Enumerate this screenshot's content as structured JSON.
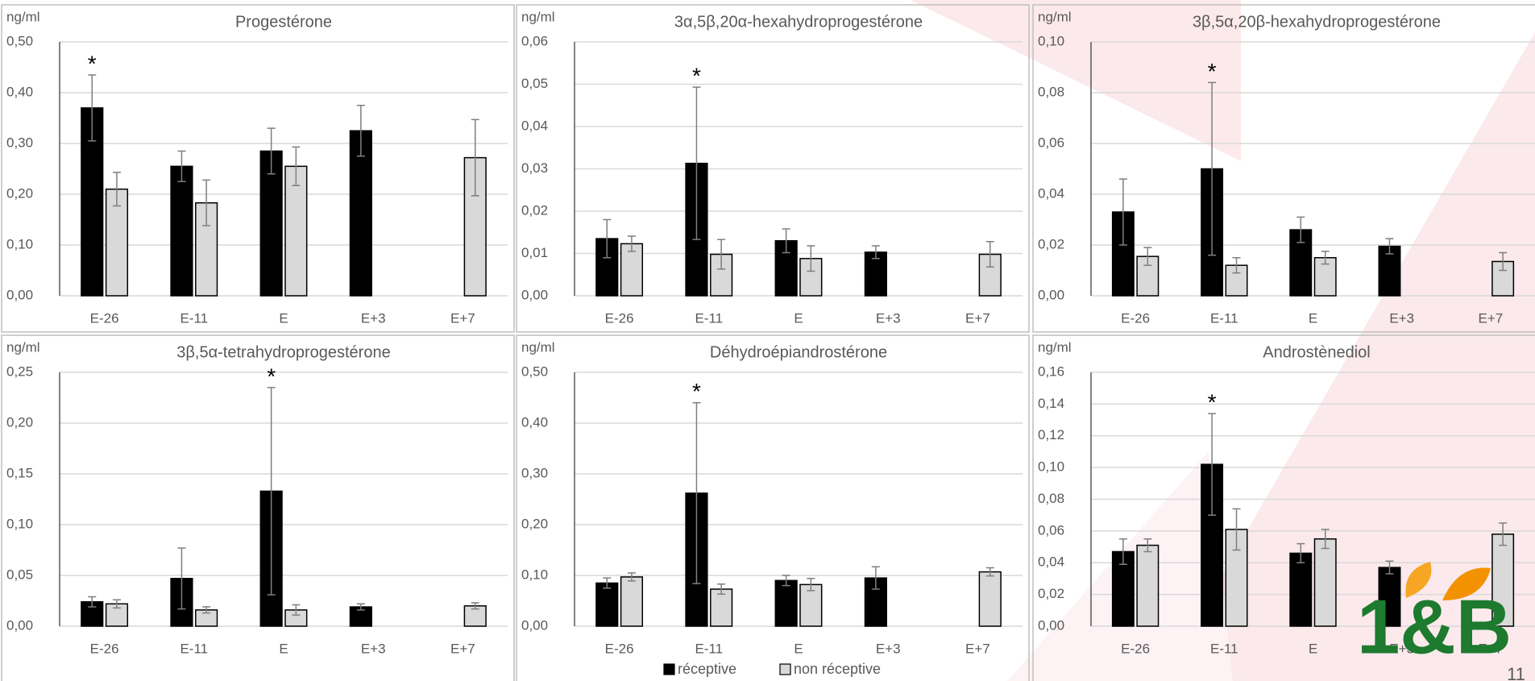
{
  "chart_data": [
    {
      "type": "bar",
      "title": "Progestérone",
      "ylabel": "ng/ml",
      "categories": [
        "E-26",
        "E-11",
        "E",
        "E+3",
        "E+7"
      ],
      "series": [
        {
          "values": [
            0.37,
            0.255,
            0.285,
            0.325,
            null
          ],
          "errors": [
            0.065,
            0.03,
            0.045,
            0.05,
            null
          ]
        },
        {
          "values": [
            0.21,
            0.183,
            0.255,
            null,
            0.272
          ],
          "errors": [
            0.033,
            0.045,
            0.038,
            null,
            0.075
          ]
        }
      ],
      "annotations": [
        {
          "text": "*",
          "x": "E-26"
        }
      ],
      "ylim": [
        0,
        0.5
      ],
      "yticks": [
        {
          "value": 0,
          "label": "0,00"
        },
        {
          "value": 0.1,
          "label": "0,10"
        },
        {
          "value": 0.2,
          "label": "0,20"
        },
        {
          "value": 0.3,
          "label": "0,30"
        },
        {
          "value": 0.4,
          "label": "0,40"
        },
        {
          "value": 0.5,
          "label": "0,50"
        }
      ],
      "grid": true
    },
    {
      "type": "bar",
      "title": "3α,5β,20α-hexahydroprogestérone",
      "ylabel": "ng/ml",
      "categories": [
        "E-26",
        "E-11",
        "E",
        "E+3",
        "E+7"
      ],
      "series": [
        {
          "values": [
            0.0135,
            0.0313,
            0.013,
            0.0103,
            null
          ],
          "errors": [
            0.0045,
            0.018,
            0.0028,
            0.0015,
            null
          ]
        },
        {
          "values": [
            0.0123,
            0.0098,
            0.0088,
            null,
            0.0098
          ],
          "errors": [
            0.0018,
            0.0035,
            0.003,
            null,
            0.003
          ]
        }
      ],
      "annotations": [
        {
          "text": "*",
          "x": "E-11"
        }
      ],
      "ylim": [
        0,
        0.06
      ],
      "yticks": [
        {
          "value": 0,
          "label": "0,00"
        },
        {
          "value": 0.01,
          "label": "0,01"
        },
        {
          "value": 0.02,
          "label": "0,02"
        },
        {
          "value": 0.03,
          "label": "0,03"
        },
        {
          "value": 0.04,
          "label": "0,04"
        },
        {
          "value": 0.05,
          "label": "0,05"
        },
        {
          "value": 0.06,
          "label": "0,06"
        }
      ],
      "grid": true
    },
    {
      "type": "bar",
      "title": "3β,5α,20β-hexahydroprogestérone",
      "ylabel": "ng/ml",
      "categories": [
        "E-26",
        "E-11",
        "E",
        "E+3",
        "E+7"
      ],
      "series": [
        {
          "values": [
            0.033,
            0.05,
            0.026,
            0.0195,
            null
          ],
          "errors": [
            0.013,
            0.034,
            0.005,
            0.003,
            null
          ]
        },
        {
          "values": [
            0.0155,
            0.012,
            0.015,
            null,
            0.0135
          ],
          "errors": [
            0.0035,
            0.003,
            0.0025,
            null,
            0.0035
          ]
        }
      ],
      "annotations": [
        {
          "text": "*",
          "x": "E-11"
        }
      ],
      "ylim": [
        0,
        0.1
      ],
      "yticks": [
        {
          "value": 0,
          "label": "0,00"
        },
        {
          "value": 0.02,
          "label": "0,02"
        },
        {
          "value": 0.04,
          "label": "0,04"
        },
        {
          "value": 0.06,
          "label": "0,06"
        },
        {
          "value": 0.08,
          "label": "0,08"
        },
        {
          "value": 0.1,
          "label": "0,10"
        }
      ],
      "grid": true
    },
    {
      "type": "bar",
      "title": "3β,5α-tetrahydroprogestérone",
      "ylabel": "ng/ml",
      "categories": [
        "E-26",
        "E-11",
        "E",
        "E+3",
        "E+7"
      ],
      "series": [
        {
          "values": [
            0.024,
            0.047,
            0.133,
            0.019,
            null
          ],
          "errors": [
            0.005,
            0.03,
            0.102,
            0.003,
            null
          ]
        },
        {
          "values": [
            0.022,
            0.016,
            0.016,
            null,
            0.02
          ],
          "errors": [
            0.004,
            0.003,
            0.005,
            null,
            0.003
          ]
        }
      ],
      "annotations": [
        {
          "text": "*",
          "x": "E"
        }
      ],
      "ylim": [
        0,
        0.25
      ],
      "yticks": [
        {
          "value": 0,
          "label": "0,00"
        },
        {
          "value": 0.05,
          "label": "0,05"
        },
        {
          "value": 0.1,
          "label": "0,10"
        },
        {
          "value": 0.15,
          "label": "0,15"
        },
        {
          "value": 0.2,
          "label": "0,20"
        },
        {
          "value": 0.25,
          "label": "0,25"
        }
      ],
      "grid": true
    },
    {
      "type": "bar",
      "title": "Déhydroépiandrostérone",
      "ylabel": "ng/ml",
      "categories": [
        "E-26",
        "E-11",
        "E",
        "E+3",
        "E+7"
      ],
      "series": [
        {
          "values": [
            0.085,
            0.262,
            0.09,
            0.095,
            null
          ],
          "errors": [
            0.01,
            0.178,
            0.01,
            0.022,
            null
          ]
        },
        {
          "values": [
            0.097,
            0.073,
            0.082,
            null,
            0.107
          ],
          "errors": [
            0.008,
            0.01,
            0.012,
            null,
            0.008
          ]
        }
      ],
      "annotations": [
        {
          "text": "*",
          "x": "E-11"
        }
      ],
      "ylim": [
        0,
        0.5
      ],
      "yticks": [
        {
          "value": 0,
          "label": "0,00"
        },
        {
          "value": 0.1,
          "label": "0,10"
        },
        {
          "value": 0.2,
          "label": "0,20"
        },
        {
          "value": 0.3,
          "label": "0,30"
        },
        {
          "value": 0.4,
          "label": "0,40"
        },
        {
          "value": 0.5,
          "label": "0,50"
        }
      ],
      "grid": true
    },
    {
      "type": "bar",
      "title": "Androstènediol",
      "ylabel": "ng/ml",
      "categories": [
        "E-26",
        "E-11",
        "E",
        "E+3",
        "E+7"
      ],
      "series": [
        {
          "values": [
            0.047,
            0.102,
            0.046,
            0.037,
            null
          ],
          "errors": [
            0.008,
            0.032,
            0.006,
            0.004,
            null
          ]
        },
        {
          "values": [
            0.051,
            0.061,
            0.055,
            null,
            0.058
          ],
          "errors": [
            0.004,
            0.013,
            0.006,
            null,
            0.007
          ]
        }
      ],
      "annotations": [
        {
          "text": "*",
          "x": "E-11"
        }
      ],
      "ylim": [
        0,
        0.16
      ],
      "yticks": [
        {
          "value": 0,
          "label": "0,00"
        },
        {
          "value": 0.02,
          "label": "0,02"
        },
        {
          "value": 0.04,
          "label": "0,04"
        },
        {
          "value": 0.06,
          "label": "0,06"
        },
        {
          "value": 0.08,
          "label": "0,08"
        },
        {
          "value": 0.1,
          "label": "0,10"
        },
        {
          "value": 0.12,
          "label": "0,12"
        },
        {
          "value": 0.14,
          "label": "0,14"
        },
        {
          "value": 0.16,
          "label": "0,16"
        }
      ],
      "grid": true
    }
  ],
  "legend": [
    {
      "name": "réceptive",
      "color": "#000000"
    },
    {
      "name": "non réceptive",
      "color": "#d9d9d9"
    }
  ],
  "logo": "1&B",
  "page_number": "11"
}
